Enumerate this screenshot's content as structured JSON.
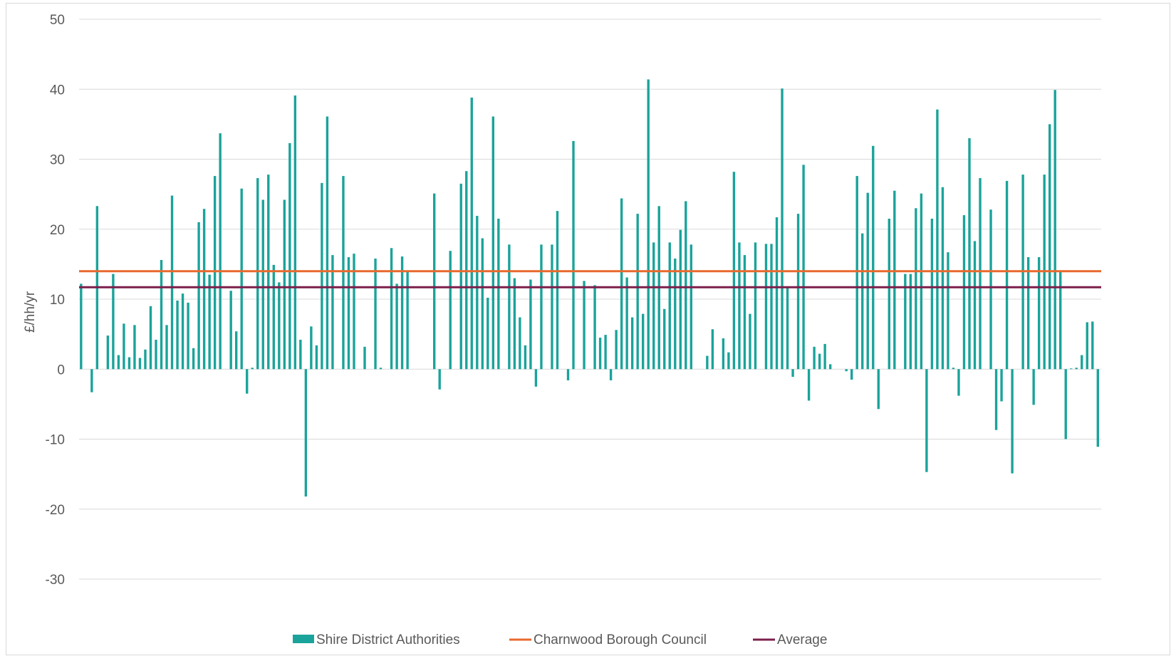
{
  "chart_data": {
    "type": "bar",
    "title": "",
    "xlabel": "",
    "ylabel": "£/hh/yr",
    "ylim": [
      -30,
      50
    ],
    "yticks": [
      50,
      40,
      30,
      20,
      10,
      0,
      -10,
      -20,
      -30
    ],
    "grid": true,
    "legend_position": "bottom",
    "series": [
      {
        "name": "Shire District Authorities",
        "kind": "bar",
        "color": "#1aa39a",
        "values": [
          12.2,
          0,
          -3.3,
          23.3,
          0,
          4.8,
          13.6,
          2.0,
          6.5,
          1.7,
          6.3,
          1.6,
          2.8,
          9.0,
          4.2,
          15.6,
          6.3,
          24.8,
          9.8,
          10.8,
          9.5,
          3.0,
          21.0,
          22.9,
          13.5,
          27.6,
          33.7,
          0,
          11.2,
          5.4,
          25.8,
          -3.5,
          0.2,
          27.3,
          24.2,
          27.8,
          14.9,
          12.4,
          24.2,
          32.3,
          39.1,
          4.2,
          -18.2,
          6.1,
          3.4,
          26.6,
          36.1,
          16.3,
          0,
          27.6,
          16.0,
          16.5,
          0,
          3.2,
          0,
          15.8,
          0.2,
          0,
          17.3,
          12.2,
          16.1,
          14.0,
          0,
          0,
          0,
          0,
          25.1,
          -2.9,
          0,
          16.9,
          0,
          26.5,
          28.3,
          38.8,
          21.9,
          18.7,
          10.2,
          36.1,
          21.5,
          0,
          17.8,
          13.0,
          7.4,
          3.4,
          12.8,
          -2.5,
          17.8,
          0,
          17.8,
          22.6,
          0,
          -1.6,
          32.6,
          0,
          12.6,
          0,
          12.0,
          4.5,
          4.9,
          -1.6,
          5.6,
          24.4,
          13.1,
          7.4,
          22.2,
          7.9,
          41.4,
          18.1,
          23.3,
          8.6,
          18.1,
          15.8,
          19.9,
          24.0,
          17.8,
          0,
          0,
          1.9,
          5.7,
          0,
          4.4,
          2.4,
          28.2,
          18.1,
          16.3,
          7.9,
          18.1,
          0,
          17.9,
          17.9,
          21.7,
          40.1,
          11.7,
          -1.1,
          22.2,
          29.2,
          -4.5,
          3.2,
          2.2,
          3.6,
          0.7,
          0,
          0,
          -0.3,
          -1.5,
          27.6,
          19.4,
          25.2,
          31.9,
          -5.7,
          0,
          21.5,
          25.5,
          0,
          13.6,
          13.6,
          23.0,
          25.1,
          -14.7,
          21.5,
          37.1,
          26.0,
          16.7,
          0.2,
          -3.8,
          22.0,
          33.0,
          18.3,
          27.3,
          0,
          22.8,
          -8.7,
          -4.6,
          26.9,
          -14.9,
          0,
          27.8,
          16.0,
          -5.1,
          16.0,
          27.8,
          35.0,
          39.9,
          14.0,
          -10.0,
          0.1,
          0.2,
          2.0,
          6.7,
          6.8,
          -11.1
        ]
      },
      {
        "name": "Charnwood Borough Council",
        "kind": "line",
        "color": "#e8692e",
        "value": 14.0
      },
      {
        "name": "Average",
        "kind": "line",
        "color": "#7b1f4b",
        "value": 11.7
      }
    ]
  }
}
